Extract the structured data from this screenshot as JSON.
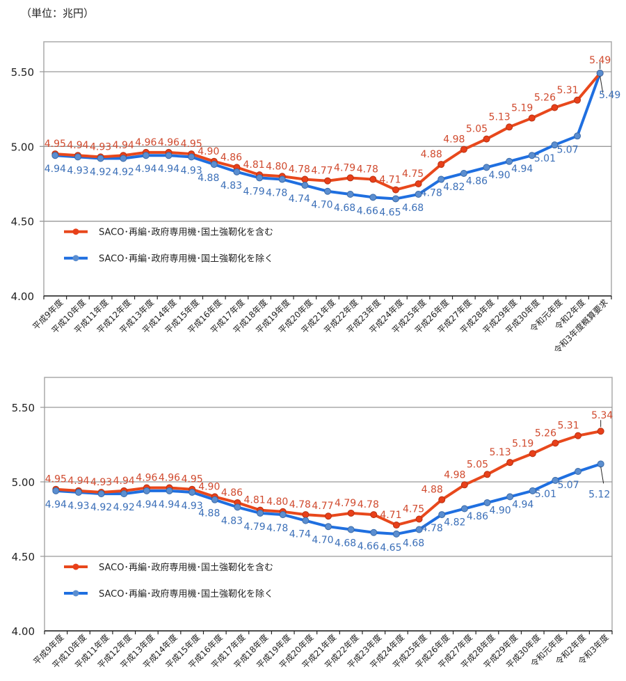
{
  "unit_label": "（単位：兆円）",
  "colors": {
    "incl": "#e8481c",
    "excl": "#1f6fe0",
    "incl_label": "#d04a2e",
    "excl_label": "#3b6fb8",
    "grid": "#999999"
  },
  "chart_data": [
    {
      "type": "line",
      "title": "",
      "ylim": [
        4.0,
        5.7
      ],
      "yticks": [
        "4.00",
        "4.50",
        "5.00",
        "5.50"
      ],
      "grid": true,
      "legend_position": "lower-left",
      "categories": [
        "平成9年度",
        "平成10年度",
        "平成11年度",
        "平成12年度",
        "平成13年度",
        "平成14年度",
        "平成15年度",
        "平成16年度",
        "平成17年度",
        "平成18年度",
        "平成19年度",
        "平成20年度",
        "平成21年度",
        "平成22年度",
        "平成23年度",
        "平成24年度",
        "平成25年度",
        "平成26年度",
        "平成27年度",
        "平成28年度",
        "平成29年度",
        "平成30年度",
        "令和元年度",
        "令和2年度",
        "令和3年度概算要求"
      ],
      "series": [
        {
          "name": "SACO･再編･政府専用機･国土強靭化を含む",
          "values": [
            4.95,
            4.94,
            4.93,
            4.94,
            4.96,
            4.96,
            4.95,
            4.9,
            4.86,
            4.81,
            4.8,
            4.78,
            4.77,
            4.79,
            4.78,
            4.71,
            4.75,
            4.88,
            4.98,
            5.05,
            5.13,
            5.19,
            5.26,
            5.31,
            5.49
          ]
        },
        {
          "name": "SACO･再編･政府専用機･国土強靭化を除く",
          "values": [
            4.94,
            4.93,
            4.92,
            4.92,
            4.94,
            4.94,
            4.93,
            4.88,
            4.83,
            4.79,
            4.78,
            4.74,
            4.7,
            4.68,
            4.66,
            4.65,
            4.68,
            4.78,
            4.82,
            4.86,
            4.9,
            4.94,
            5.01,
            5.07,
            5.49
          ]
        }
      ]
    },
    {
      "type": "line",
      "title": "",
      "ylim": [
        4.0,
        5.7
      ],
      "yticks": [
        "4.00",
        "4.50",
        "5.00",
        "5.50"
      ],
      "grid": true,
      "legend_position": "lower-left",
      "categories": [
        "平成9年度",
        "平成10年度",
        "平成11年度",
        "平成12年度",
        "平成13年度",
        "平成14年度",
        "平成15年度",
        "平成16年度",
        "平成17年度",
        "平成18年度",
        "平成19年度",
        "平成20年度",
        "平成21年度",
        "平成22年度",
        "平成23年度",
        "平成24年度",
        "平成25年度",
        "平成26年度",
        "平成27年度",
        "平成28年度",
        "平成29年度",
        "平成30年度",
        "令和元年度",
        "令和2年度",
        "令和3年度"
      ],
      "series": [
        {
          "name": "SACO･再編･政府専用機･国土強靭化を含む",
          "values": [
            4.95,
            4.94,
            4.93,
            4.94,
            4.96,
            4.96,
            4.95,
            4.9,
            4.86,
            4.81,
            4.8,
            4.78,
            4.77,
            4.79,
            4.78,
            4.71,
            4.75,
            4.88,
            4.98,
            5.05,
            5.13,
            5.19,
            5.26,
            5.31,
            5.34
          ]
        },
        {
          "name": "SACO･再編･政府専用機･国土強靭化を除く",
          "values": [
            4.94,
            4.93,
            4.92,
            4.92,
            4.94,
            4.94,
            4.93,
            4.88,
            4.83,
            4.79,
            4.78,
            4.74,
            4.7,
            4.68,
            4.66,
            4.65,
            4.68,
            4.78,
            4.82,
            4.86,
            4.9,
            4.94,
            5.01,
            5.07,
            5.12
          ]
        }
      ]
    }
  ]
}
